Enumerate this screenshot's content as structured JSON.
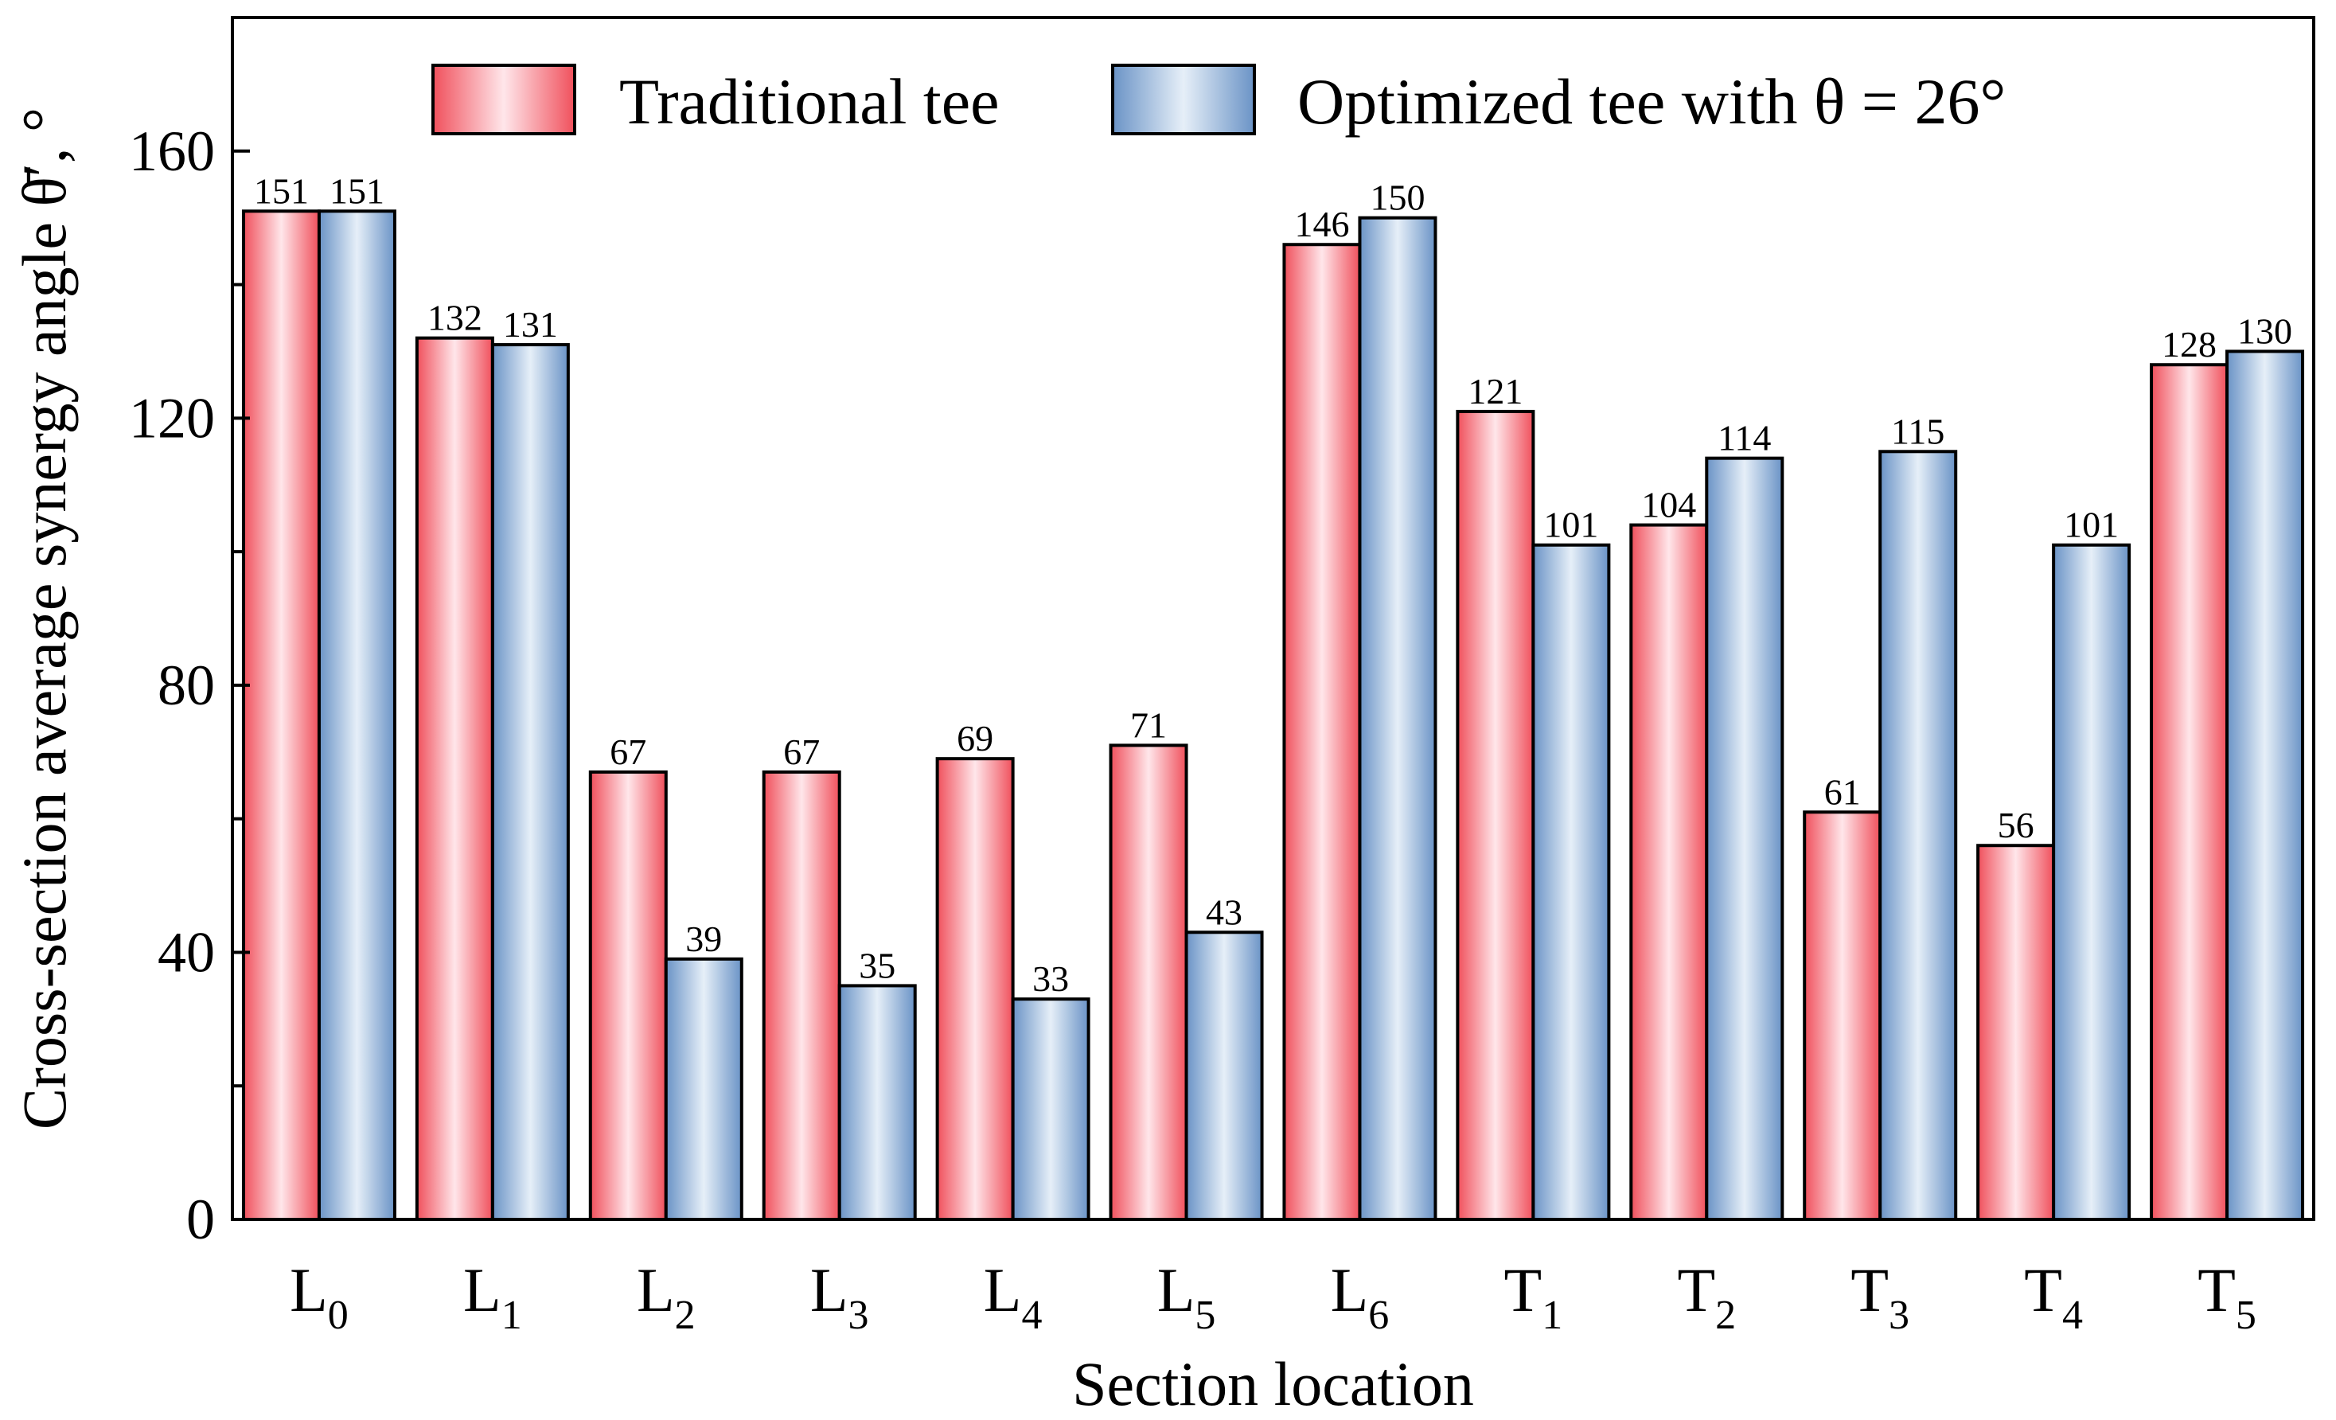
{
  "chart_data": {
    "type": "bar",
    "xlabel": "Section location",
    "ylabel": "Cross-section average synergy angle θ̄′, °",
    "ylim": [
      0,
      180
    ],
    "yticks": [
      0,
      40,
      80,
      120,
      160
    ],
    "categories": [
      {
        "main": "L",
        "sub": "0"
      },
      {
        "main": "L",
        "sub": "1"
      },
      {
        "main": "L",
        "sub": "2"
      },
      {
        "main": "L",
        "sub": "3"
      },
      {
        "main": "L",
        "sub": "4"
      },
      {
        "main": "L",
        "sub": "5"
      },
      {
        "main": "L",
        "sub": "6"
      },
      {
        "main": "T",
        "sub": "1"
      },
      {
        "main": "T",
        "sub": "2"
      },
      {
        "main": "T",
        "sub": "3"
      },
      {
        "main": "T",
        "sub": "4"
      },
      {
        "main": "T",
        "sub": "5"
      }
    ],
    "series": [
      {
        "name": "Traditional tee",
        "color": "#f0646e",
        "values": [
          151,
          132,
          67,
          67,
          69,
          71,
          146,
          121,
          104,
          61,
          56,
          128
        ]
      },
      {
        "name": "Optimized tee with θ = 26°",
        "color": "#6e96c8",
        "values": [
          151,
          131,
          39,
          35,
          33,
          43,
          150,
          101,
          114,
          115,
          101,
          130
        ]
      }
    ],
    "legend_position": "top",
    "grid": false
  }
}
